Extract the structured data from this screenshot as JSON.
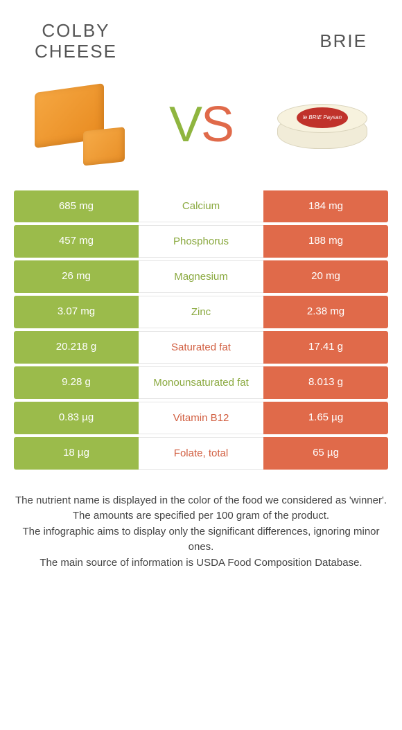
{
  "colors": {
    "green": "#9bbb4b",
    "orange": "#e06a4a",
    "text_green": "#8aa93f",
    "text_orange": "#d15e40"
  },
  "header": {
    "left_line1": "COLBY",
    "left_line2": "CHEESE",
    "right": "BRIE"
  },
  "vs": {
    "v": "V",
    "s": "S"
  },
  "brie_label": "le BRIE Paysan",
  "rows": [
    {
      "left": "685 mg",
      "label": "Calcium",
      "right": "184 mg",
      "winner": "left"
    },
    {
      "left": "457 mg",
      "label": "Phosphorus",
      "right": "188 mg",
      "winner": "left"
    },
    {
      "left": "26 mg",
      "label": "Magnesium",
      "right": "20 mg",
      "winner": "left"
    },
    {
      "left": "3.07 mg",
      "label": "Zinc",
      "right": "2.38 mg",
      "winner": "left"
    },
    {
      "left": "20.218 g",
      "label": "Saturated fat",
      "right": "17.41 g",
      "winner": "right"
    },
    {
      "left": "9.28 g",
      "label": "Monounsaturated fat",
      "right": "8.013 g",
      "winner": "left"
    },
    {
      "left": "0.83 µg",
      "label": "Vitamin B12",
      "right": "1.65 µg",
      "winner": "right"
    },
    {
      "left": "18 µg",
      "label": "Folate, total",
      "right": "65 µg",
      "winner": "right"
    }
  ],
  "footer": {
    "l1": "The nutrient name is displayed in the color of the food we considered as 'winner'.",
    "l2": "The amounts are specified per 100 gram of the product.",
    "l3": "The infographic aims to display only the significant differences, ignoring minor ones.",
    "l4": "The main source of information is USDA Food Composition Database."
  }
}
